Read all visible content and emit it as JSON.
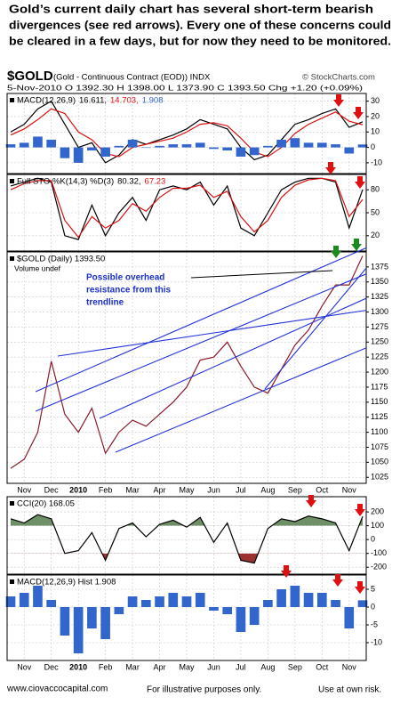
{
  "header": {
    "lines": [
      "Gold’s current daily chart has several short-term bearish",
      "divergences (see red arrows).  Every one of these concerns could",
      "be cleared in a few days, but for now they need to be monitored."
    ],
    "symbol": "$GOLD",
    "description": "(Gold - Continuous Contract (EOD)) INDX",
    "source": "© StockCharts.com",
    "quote": "5-Nov-2010   O 1392.30   H 1398.00   L 1373.90   C 1393.50   Chg +1.20 (+0.09%)"
  },
  "annotation": [
    "Possible overhead",
    "resistance from this",
    "trendline"
  ],
  "chart_data": [
    {
      "type": "line",
      "title": "MACD(12,26,9)",
      "ylim": [
        -17,
        35
      ],
      "yticks": [
        30,
        20,
        10,
        0,
        -10
      ],
      "grid": true,
      "series": [
        {
          "name": "16.611,",
          "color": "#000000",
          "values": [
            10,
            15,
            25,
            30,
            15,
            0,
            3,
            -10,
            -5,
            5,
            2,
            5,
            8,
            12,
            18,
            15,
            12,
            0,
            -8,
            -5,
            5,
            15,
            18,
            22,
            25,
            13,
            16.611
          ]
        },
        {
          "name": "14.703,",
          "color": "#dd1111",
          "values": [
            8,
            12,
            18,
            25,
            22,
            10,
            5,
            -4,
            -6,
            0,
            2,
            4,
            6,
            10,
            15,
            16,
            14,
            6,
            -3,
            -6,
            0,
            9,
            15,
            19,
            23,
            17,
            14.703
          ]
        },
        {
          "name": "1.908",
          "color": "#3366cc",
          "type": "bar",
          "values": [
            2,
            3,
            7,
            5,
            -7,
            -10,
            -2,
            -6,
            1,
            5,
            0,
            1,
            2,
            2,
            3,
            -1,
            -2,
            -6,
            -5,
            1,
            5,
            6,
            3,
            3,
            2,
            -4,
            1.908
          ]
        }
      ]
    },
    {
      "type": "line",
      "title": "Full STO %K(14,3) %D(3)",
      "ylim": [
        0,
        100
      ],
      "yticks": [
        80,
        50,
        20
      ],
      "grid": true,
      "series": [
        {
          "name": "80.32,",
          "color": "#000000",
          "values": [
            85,
            90,
            95,
            90,
            20,
            15,
            60,
            20,
            50,
            70,
            40,
            80,
            85,
            80,
            90,
            60,
            85,
            30,
            20,
            50,
            80,
            90,
            95,
            95,
            90,
            30,
            80.32
          ]
        },
        {
          "name": "67.23",
          "color": "#dd1111",
          "values": [
            80,
            88,
            92,
            92,
            40,
            18,
            45,
            30,
            40,
            62,
            52,
            70,
            82,
            82,
            86,
            70,
            78,
            45,
            25,
            40,
            70,
            86,
            93,
            95,
            92,
            45,
            67.23
          ]
        }
      ]
    },
    {
      "type": "line",
      "title": "$GOLD (Daily) 1393.50",
      "note": "Volume undef",
      "ylim": [
        1015,
        1400
      ],
      "yticks": [
        1375,
        1350,
        1325,
        1300,
        1275,
        1250,
        1225,
        1200,
        1175,
        1150,
        1125,
        1100,
        1075,
        1050,
        1025
      ],
      "grid": true,
      "categories": [
        null,
        "Nov",
        null,
        "Dec",
        null,
        "2010",
        null,
        "Feb",
        null,
        "Mar",
        null,
        "Apr",
        null,
        "May",
        null,
        "Jun",
        null,
        "Jul",
        null,
        "Aug",
        null,
        "Sep",
        null,
        "Oct",
        null,
        "Nov",
        null
      ],
      "series": [
        {
          "name": "$GOLD",
          "color": "#8b1a2b",
          "values": [
            1040,
            1055,
            1100,
            1218,
            1130,
            1100,
            1140,
            1065,
            1100,
            1120,
            1110,
            1130,
            1150,
            1175,
            1220,
            1225,
            1250,
            1210,
            1175,
            1165,
            1205,
            1245,
            1270,
            1310,
            1345,
            1345,
            1393.5
          ]
        }
      ]
    },
    {
      "type": "line",
      "title": "CCI(20) 168.05",
      "ylim": [
        -250,
        310
      ],
      "yticks": [
        200,
        100,
        0,
        -100,
        -200
      ],
      "grid": true,
      "fill_above": 100,
      "fill_above_color": "#6f8f66",
      "fill_below": -100,
      "fill_below_color": "#9a3030",
      "series": [
        {
          "name": "CCI",
          "color": "#000000",
          "values": [
            150,
            120,
            180,
            150,
            -100,
            -80,
            50,
            -150,
            80,
            120,
            20,
            110,
            140,
            90,
            160,
            -20,
            120,
            -150,
            -170,
            80,
            150,
            130,
            170,
            150,
            120,
            -80,
            168.05
          ]
        }
      ]
    },
    {
      "type": "bar",
      "title": "MACD(12,26,9) Hist 1.908",
      "ylim": [
        -15,
        9
      ],
      "yticks": [
        5,
        0,
        -5,
        -10
      ],
      "grid": true,
      "categories": [
        null,
        "Nov",
        null,
        "Dec",
        null,
        "2010",
        null,
        "Feb",
        null,
        "Mar",
        null,
        "Apr",
        null,
        "May",
        null,
        "Jun",
        null,
        "Jul",
        null,
        "Aug",
        null,
        "Sep",
        null,
        "Oct",
        null,
        "Nov",
        null
      ],
      "series": [
        {
          "name": "Hist",
          "color": "#3366cc",
          "values": [
            3,
            4,
            6,
            2,
            -8,
            -13,
            -6,
            -9,
            -2,
            3,
            2,
            3,
            4,
            3,
            4,
            -1,
            -2,
            -7,
            -5,
            2,
            5,
            6,
            4,
            4,
            2,
            -6,
            1.908
          ]
        }
      ]
    }
  ],
  "footer": [
    "www.ciovaccocapital.com",
    "For illustrative purposes only.",
    "Use at own risk."
  ]
}
